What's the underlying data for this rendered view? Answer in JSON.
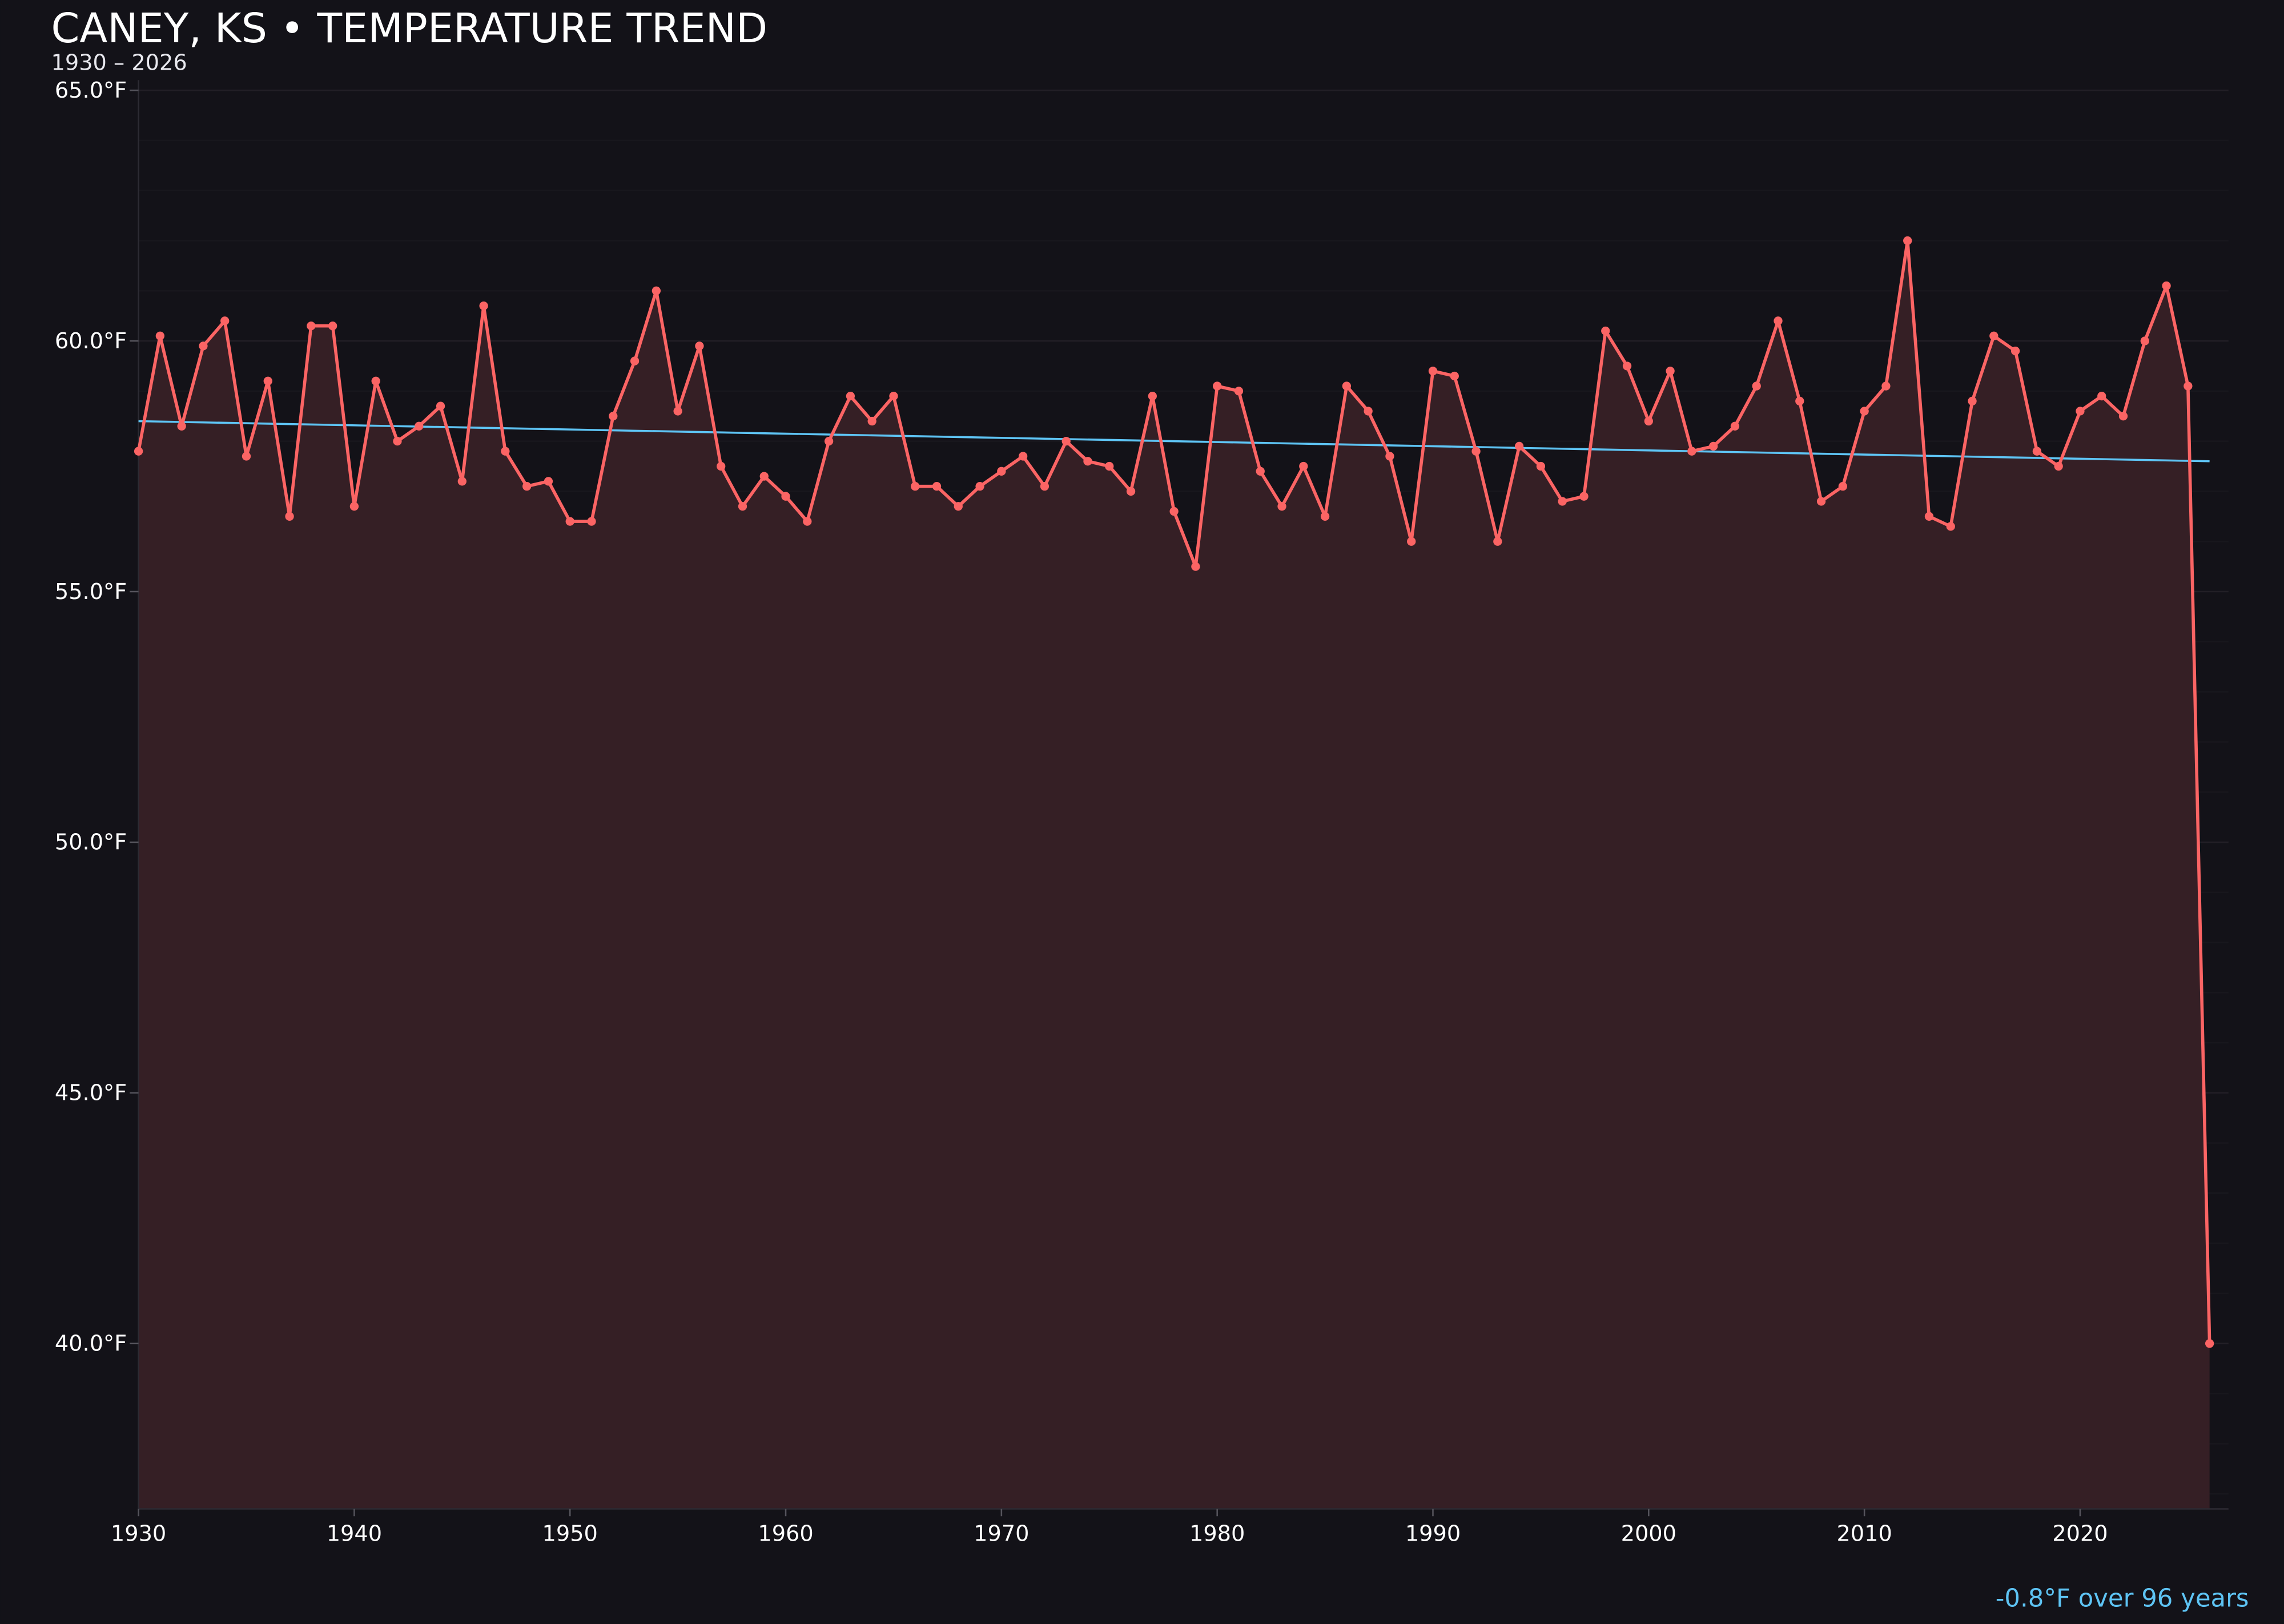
{
  "header": {
    "title": "CANEY, KS • TEMPERATURE TREND",
    "subtitle": "1930 – 2026"
  },
  "annotation": "-0.8°F over 96 years",
  "colors": {
    "background": "#131218",
    "series_line": "#fb6464",
    "series_fill": "#351f25",
    "trend_line": "#5ec4f4",
    "annotation": "#5ec4f4",
    "text": "#ffffff"
  },
  "chart_data": {
    "type": "area",
    "title": "CANEY, KS • TEMPERATURE TREND",
    "subtitle": "1930 – 2026",
    "xlabel": "",
    "ylabel": "",
    "xlim": [
      1930,
      2027
    ],
    "ylim": [
      36.7,
      65.0
    ],
    "grid": true,
    "legend": "none",
    "x_ticks": [
      1930,
      1940,
      1950,
      1960,
      1970,
      1980,
      1990,
      2000,
      2010,
      2020
    ],
    "y_ticks": [
      40,
      45,
      50,
      55,
      60,
      65
    ],
    "y_tick_labels": [
      "40.0°F",
      "45.0°F",
      "50.0°F",
      "55.0°F",
      "60.0°F",
      "65.0°F"
    ],
    "x": [
      1930,
      1931,
      1932,
      1933,
      1934,
      1935,
      1936,
      1937,
      1938,
      1939,
      1940,
      1941,
      1942,
      1943,
      1944,
      1945,
      1946,
      1947,
      1948,
      1949,
      1950,
      1951,
      1952,
      1953,
      1954,
      1955,
      1956,
      1957,
      1958,
      1959,
      1960,
      1961,
      1962,
      1963,
      1964,
      1965,
      1966,
      1967,
      1968,
      1969,
      1970,
      1971,
      1972,
      1973,
      1974,
      1975,
      1976,
      1977,
      1978,
      1979,
      1980,
      1981,
      1982,
      1983,
      1984,
      1985,
      1986,
      1987,
      1988,
      1989,
      1990,
      1991,
      1992,
      1993,
      1994,
      1995,
      1996,
      1997,
      1998,
      1999,
      2000,
      2001,
      2002,
      2003,
      2004,
      2005,
      2006,
      2007,
      2008,
      2009,
      2010,
      2011,
      2012,
      2013,
      2014,
      2015,
      2016,
      2017,
      2018,
      2019,
      2020,
      2021,
      2022,
      2023,
      2024,
      2025,
      2026
    ],
    "values": [
      57.8,
      60.1,
      58.3,
      59.9,
      60.4,
      57.7,
      59.2,
      56.5,
      60.3,
      60.3,
      56.7,
      59.2,
      58.0,
      58.3,
      58.7,
      57.2,
      60.7,
      57.8,
      57.1,
      57.2,
      56.4,
      56.4,
      58.5,
      59.6,
      61.0,
      58.6,
      59.9,
      57.5,
      56.7,
      57.3,
      56.9,
      56.4,
      58.0,
      58.9,
      58.4,
      58.9,
      57.1,
      57.1,
      56.7,
      57.1,
      57.4,
      57.7,
      57.1,
      58.0,
      57.6,
      57.5,
      57.0,
      58.9,
      56.6,
      55.5,
      59.1,
      59.0,
      57.4,
      56.7,
      57.5,
      56.5,
      59.1,
      58.6,
      57.7,
      56.0,
      59.4,
      59.3,
      57.8,
      56.0,
      57.9,
      57.5,
      56.8,
      56.9,
      60.2,
      59.5,
      58.4,
      59.4,
      57.8,
      57.9,
      58.3,
      59.1,
      60.4,
      58.8,
      56.8,
      57.1,
      58.6,
      59.1,
      62.0,
      56.5,
      56.3,
      58.8,
      60.1,
      59.8,
      57.8,
      57.5,
      58.6,
      58.9,
      58.5,
      60.0,
      61.1,
      59.1,
      40.0
    ],
    "trend": {
      "x": [
        1930,
        2026
      ],
      "y": [
        58.4,
        57.6
      ]
    }
  }
}
